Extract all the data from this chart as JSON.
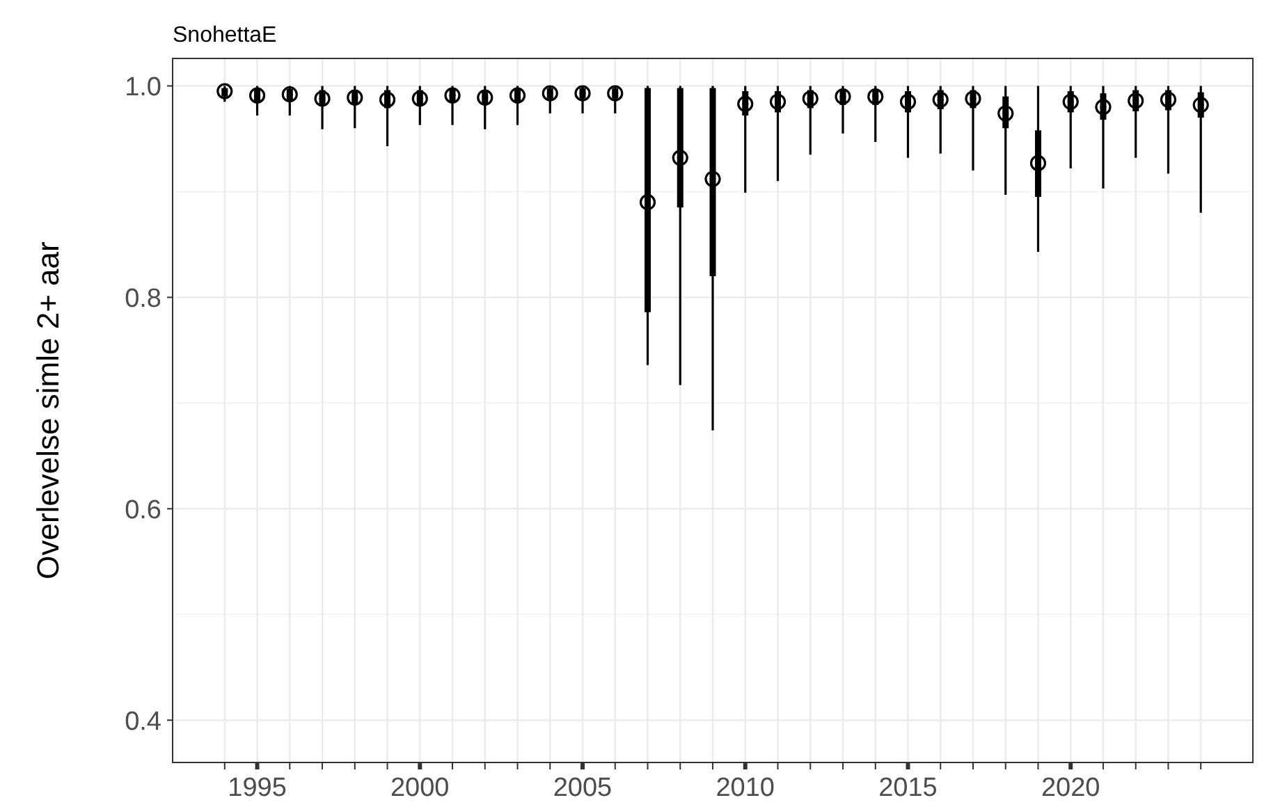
{
  "chart_data": {
    "type": "box",
    "title": "SnohettaE",
    "ylabel": "Overlevelse simle 2+ aar",
    "categories": [
      null,
      "1995",
      null,
      null,
      null,
      null,
      "2000",
      null,
      null,
      null,
      null,
      "2005",
      null,
      null,
      null,
      null,
      "2010",
      null,
      null,
      null,
      null,
      "2015",
      null,
      null,
      null,
      null,
      "2020",
      null,
      null,
      null,
      null
    ],
    "boxes": [
      {
        "low": 0.985,
        "q1": 0.99,
        "median": 0.995,
        "q3": 0.998,
        "high": 1.0
      },
      {
        "low": 0.972,
        "q1": 0.985,
        "median": 0.991,
        "q3": 0.997,
        "high": 1.0
      },
      {
        "low": 0.972,
        "q1": 0.986,
        "median": 0.992,
        "q3": 0.997,
        "high": 1.0
      },
      {
        "low": 0.959,
        "q1": 0.981,
        "median": 0.988,
        "q3": 0.996,
        "high": 1.0
      },
      {
        "low": 0.96,
        "q1": 0.982,
        "median": 0.989,
        "q3": 0.996,
        "high": 1.0
      },
      {
        "low": 0.943,
        "q1": 0.979,
        "median": 0.987,
        "q3": 0.996,
        "high": 1.0
      },
      {
        "low": 0.963,
        "q1": 0.982,
        "median": 0.988,
        "q3": 0.996,
        "high": 1.0
      },
      {
        "low": 0.963,
        "q1": 0.985,
        "median": 0.991,
        "q3": 0.997,
        "high": 1.0
      },
      {
        "low": 0.959,
        "q1": 0.982,
        "median": 0.989,
        "q3": 0.996,
        "high": 1.0
      },
      {
        "low": 0.963,
        "q1": 0.985,
        "median": 0.991,
        "q3": 0.997,
        "high": 1.0
      },
      {
        "low": 0.974,
        "q1": 0.988,
        "median": 0.993,
        "q3": 0.998,
        "high": 1.0
      },
      {
        "low": 0.974,
        "q1": 0.988,
        "median": 0.993,
        "q3": 0.998,
        "high": 1.0
      },
      {
        "low": 0.974,
        "q1": 0.988,
        "median": 0.993,
        "q3": 0.998,
        "high": 1.0
      },
      {
        "low": 0.736,
        "q1": 0.786,
        "median": 0.89,
        "q3": 0.998,
        "high": 1.0
      },
      {
        "low": 0.717,
        "q1": 0.885,
        "median": 0.932,
        "q3": 0.998,
        "high": 1.0
      },
      {
        "low": 0.674,
        "q1": 0.82,
        "median": 0.912,
        "q3": 0.998,
        "high": 1.0
      },
      {
        "low": 0.899,
        "q1": 0.972,
        "median": 0.983,
        "q3": 0.995,
        "high": 1.0
      },
      {
        "low": 0.91,
        "q1": 0.975,
        "median": 0.985,
        "q3": 0.995,
        "high": 1.0
      },
      {
        "low": 0.935,
        "q1": 0.979,
        "median": 0.988,
        "q3": 0.996,
        "high": 1.0
      },
      {
        "low": 0.955,
        "q1": 0.982,
        "median": 0.99,
        "q3": 0.997,
        "high": 1.0
      },
      {
        "low": 0.947,
        "q1": 0.982,
        "median": 0.99,
        "q3": 0.997,
        "high": 1.0
      },
      {
        "low": 0.932,
        "q1": 0.975,
        "median": 0.985,
        "q3": 0.995,
        "high": 1.0
      },
      {
        "low": 0.936,
        "q1": 0.978,
        "median": 0.987,
        "q3": 0.996,
        "high": 1.0
      },
      {
        "low": 0.92,
        "q1": 0.979,
        "median": 0.988,
        "q3": 0.996,
        "high": 1.0
      },
      {
        "low": 0.897,
        "q1": 0.96,
        "median": 0.974,
        "q3": 0.99,
        "high": 1.0
      },
      {
        "low": 0.843,
        "q1": 0.895,
        "median": 0.927,
        "q3": 0.958,
        "high": 1.0
      },
      {
        "low": 0.922,
        "q1": 0.975,
        "median": 0.985,
        "q3": 0.995,
        "high": 1.0
      },
      {
        "low": 0.903,
        "q1": 0.968,
        "median": 0.98,
        "q3": 0.993,
        "high": 1.0
      },
      {
        "low": 0.932,
        "q1": 0.976,
        "median": 0.986,
        "q3": 0.996,
        "high": 1.0
      },
      {
        "low": 0.917,
        "q1": 0.977,
        "median": 0.987,
        "q3": 0.996,
        "high": 1.0
      },
      {
        "low": 0.88,
        "q1": 0.97,
        "median": 0.982,
        "q3": 0.994,
        "high": 1.0
      }
    ],
    "series": [
      {
        "type": "scatter",
        "color": "#000000",
        "values": [
          0.995,
          0.991,
          0.992,
          0.988,
          0.989,
          0.987,
          0.988,
          0.991,
          0.989,
          0.991,
          0.993,
          0.993,
          0.993,
          0.89,
          0.932,
          0.912,
          0.983,
          0.985,
          0.988,
          0.99,
          0.99,
          0.985,
          0.987,
          0.988,
          0.974,
          0.927,
          0.985,
          0.98,
          0.986,
          0.987,
          0.982
        ]
      }
    ],
    "color": "#000000",
    "marker": "circle",
    "ylim": [
      0.36,
      1.026
    ],
    "yticks": [
      {
        "value": 0.4,
        "label": "0.4"
      },
      {
        "value": 0.6,
        "label": "0.6"
      },
      {
        "value": 0.8,
        "label": "0.8"
      },
      {
        "value": 1.0,
        "label": "1.0"
      }
    ],
    "grid": true
  }
}
